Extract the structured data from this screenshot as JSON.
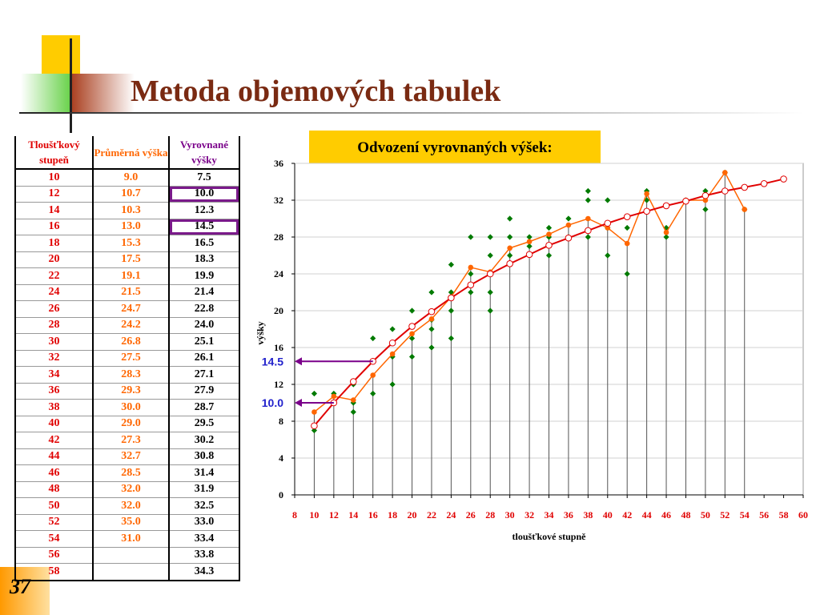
{
  "slide": {
    "title": "Metoda objemových tabulek",
    "number": "37"
  },
  "colors": {
    "title": "#7a2a12",
    "prumerna": "#ff6600",
    "vyrovnane": "#e00000",
    "measured": "#007a00",
    "arrow": "#7a008a",
    "highlight": "#ffcc00"
  },
  "table": {
    "headers": [
      "Tloušťkový stupeň",
      "Průměrná výška",
      "Vyrovnané výšky"
    ],
    "rows": [
      [
        "10",
        "9.0",
        "7.5"
      ],
      [
        "12",
        "10.7",
        "10.0"
      ],
      [
        "14",
        "10.3",
        "12.3"
      ],
      [
        "16",
        "13.0",
        "14.5"
      ],
      [
        "18",
        "15.3",
        "16.5"
      ],
      [
        "20",
        "17.5",
        "18.3"
      ],
      [
        "22",
        "19.1",
        "19.9"
      ],
      [
        "24",
        "21.5",
        "21.4"
      ],
      [
        "26",
        "24.7",
        "22.8"
      ],
      [
        "28",
        "24.2",
        "24.0"
      ],
      [
        "30",
        "26.8",
        "25.1"
      ],
      [
        "32",
        "27.5",
        "26.1"
      ],
      [
        "34",
        "28.3",
        "27.1"
      ],
      [
        "36",
        "29.3",
        "27.9"
      ],
      [
        "38",
        "30.0",
        "28.7"
      ],
      [
        "40",
        "29.0",
        "29.5"
      ],
      [
        "42",
        "27.3",
        "30.2"
      ],
      [
        "44",
        "32.7",
        "30.8"
      ],
      [
        "46",
        "28.5",
        "31.4"
      ],
      [
        "48",
        "32.0",
        "31.9"
      ],
      [
        "50",
        "32.0",
        "32.5"
      ],
      [
        "52",
        "35.0",
        "33.0"
      ],
      [
        "54",
        "31.0",
        "33.4"
      ],
      [
        "56",
        "",
        "33.8"
      ],
      [
        "58",
        "",
        "34.3"
      ]
    ],
    "highlighted_rows": [
      1,
      3
    ]
  },
  "chart_data": {
    "type": "scatter",
    "title": "Odvození vyrovnaných výšek:",
    "xlabel": "tloušťkové stupně",
    "ylabel": "výšky",
    "xlim": [
      8,
      60
    ],
    "ylim": [
      0,
      36
    ],
    "xticks": [
      8,
      10,
      12,
      14,
      16,
      18,
      20,
      22,
      24,
      26,
      28,
      30,
      32,
      34,
      36,
      38,
      40,
      42,
      44,
      46,
      48,
      50,
      52,
      54,
      56,
      58,
      60
    ],
    "yticks": [
      0,
      4,
      8,
      12,
      16,
      20,
      24,
      28,
      32,
      36
    ],
    "grid": "horizontal",
    "series": [
      {
        "kind": "measured",
        "x": [
          10,
          10,
          12,
          12,
          14,
          14,
          14,
          16,
          16,
          18,
          18,
          18,
          20,
          20,
          20,
          22,
          22,
          22,
          22,
          24,
          24,
          24,
          24,
          26,
          26,
          26,
          28,
          28,
          28,
          28,
          30,
          30,
          30,
          32,
          32,
          34,
          34,
          34,
          36,
          36,
          38,
          38,
          38,
          40,
          40,
          40,
          42,
          42,
          44,
          44,
          46,
          46,
          48,
          50,
          50,
          52,
          54
        ],
        "y": [
          7,
          11,
          10,
          11,
          9,
          10,
          12,
          11,
          17,
          12,
          15,
          18,
          15,
          17,
          20,
          16,
          18,
          19,
          22,
          17,
          20,
          22,
          25,
          22,
          24,
          28,
          20,
          22,
          26,
          28,
          26,
          28,
          30,
          27,
          28,
          26,
          28,
          29,
          28,
          30,
          28,
          32,
          33,
          26,
          29,
          32,
          24,
          29,
          32,
          33,
          28,
          29,
          32,
          31,
          33,
          35,
          31
        ]
      },
      {
        "kind": "prumerna",
        "x": [
          10,
          12,
          14,
          16,
          18,
          20,
          22,
          24,
          26,
          28,
          30,
          32,
          34,
          36,
          38,
          40,
          42,
          44,
          46,
          48,
          50,
          52,
          54
        ],
        "y": [
          9.0,
          10.7,
          10.3,
          13.0,
          15.3,
          17.5,
          19.1,
          21.5,
          24.7,
          24.2,
          26.8,
          27.5,
          28.3,
          29.3,
          30.0,
          29.0,
          27.3,
          32.7,
          28.5,
          32.0,
          32.0,
          35.0,
          31.0
        ]
      },
      {
        "kind": "vyrovnane",
        "x": [
          10,
          12,
          14,
          16,
          18,
          20,
          22,
          24,
          26,
          28,
          30,
          32,
          34,
          36,
          38,
          40,
          42,
          44,
          46,
          48,
          50,
          52,
          54,
          56,
          58
        ],
        "y": [
          7.5,
          10.0,
          12.3,
          14.5,
          16.5,
          18.3,
          19.9,
          21.4,
          22.8,
          24.0,
          25.1,
          26.1,
          27.1,
          27.9,
          28.7,
          29.5,
          30.2,
          30.8,
          31.4,
          31.9,
          32.5,
          33.0,
          33.4,
          33.8,
          34.3
        ]
      }
    ],
    "stems": {
      "x": [
        10,
        12,
        14,
        16,
        18,
        20,
        22,
        24,
        26,
        28,
        30,
        32,
        34,
        36,
        38,
        40,
        42,
        44,
        46,
        48,
        50,
        52,
        54
      ],
      "y": [
        9.0,
        10.7,
        10.3,
        13.0,
        15.3,
        17.5,
        19.1,
        21.5,
        24.7,
        24.2,
        26.8,
        27.5,
        28.3,
        29.3,
        30.0,
        29.0,
        27.3,
        32.7,
        28.5,
        32.0,
        32.0,
        35.0,
        31.0
      ]
    },
    "annotations": [
      {
        "label": "14.5",
        "y": 14.5
      },
      {
        "label": "10.0",
        "y": 10.0
      }
    ]
  }
}
